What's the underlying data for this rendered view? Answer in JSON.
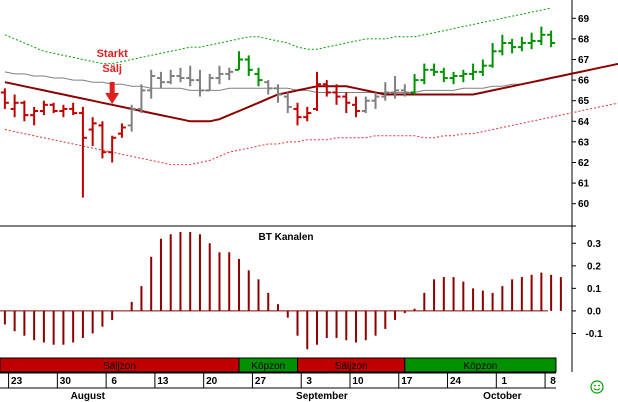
{
  "chart_data": [
    {
      "type": "line",
      "title": "",
      "y_ticks": [
        60,
        61,
        62,
        63,
        64,
        65,
        66,
        67,
        68,
        69
      ],
      "ylim": [
        59.5,
        69.5
      ],
      "annotation": {
        "line1": "Starkt",
        "line2": "Sälj",
        "at_bar": 11,
        "color": "#e02020"
      },
      "bar_colors": {
        "sell": "#c00000",
        "neutral": "#808080",
        "buy": "#009000"
      },
      "bars": [
        {
          "h": 65.6,
          "l": 64.6,
          "o": 65.4,
          "c": 64.9,
          "z": "sell"
        },
        {
          "h": 65.3,
          "l": 64.2,
          "o": 64.6,
          "c": 64.9,
          "z": "sell"
        },
        {
          "h": 65.0,
          "l": 64.0,
          "o": 64.9,
          "c": 64.3,
          "z": "sell"
        },
        {
          "h": 64.7,
          "l": 63.8,
          "o": 64.3,
          "c": 64.5,
          "z": "sell"
        },
        {
          "h": 65.0,
          "l": 64.3,
          "o": 64.5,
          "c": 64.8,
          "z": "sell"
        },
        {
          "h": 64.9,
          "l": 64.4,
          "o": 64.8,
          "c": 64.5,
          "z": "sell"
        },
        {
          "h": 64.8,
          "l": 64.2,
          "o": 64.5,
          "c": 64.6,
          "z": "sell"
        },
        {
          "h": 64.9,
          "l": 64.3,
          "o": 64.6,
          "c": 64.4,
          "z": "sell"
        },
        {
          "h": 64.7,
          "l": 60.3,
          "o": 64.4,
          "c": 63.2,
          "z": "sell"
        },
        {
          "h": 64.2,
          "l": 62.8,
          "o": 63.6,
          "c": 63.9,
          "z": "sell"
        },
        {
          "h": 64.0,
          "l": 62.2,
          "o": 63.8,
          "c": 62.5,
          "z": "sell"
        },
        {
          "h": 63.3,
          "l": 62.0,
          "o": 62.5,
          "c": 63.2,
          "z": "sell"
        },
        {
          "h": 63.9,
          "l": 63.2,
          "o": 63.4,
          "c": 63.7,
          "z": "sell"
        },
        {
          "h": 64.8,
          "l": 63.5,
          "o": 63.8,
          "c": 64.6,
          "z": "neutral"
        },
        {
          "h": 65.8,
          "l": 64.4,
          "o": 64.6,
          "c": 65.5,
          "z": "neutral"
        },
        {
          "h": 66.5,
          "l": 65.1,
          "o": 65.5,
          "c": 66.2,
          "z": "neutral"
        },
        {
          "h": 66.4,
          "l": 65.6,
          "o": 66.1,
          "c": 65.9,
          "z": "neutral"
        },
        {
          "h": 66.5,
          "l": 65.8,
          "o": 65.9,
          "c": 66.2,
          "z": "neutral"
        },
        {
          "h": 66.6,
          "l": 65.9,
          "o": 66.2,
          "c": 66.1,
          "z": "neutral"
        },
        {
          "h": 66.7,
          "l": 65.7,
          "o": 66.1,
          "c": 66.0,
          "z": "neutral"
        },
        {
          "h": 66.5,
          "l": 65.2,
          "o": 66.0,
          "c": 65.5,
          "z": "neutral"
        },
        {
          "h": 66.3,
          "l": 65.5,
          "o": 65.5,
          "c": 66.1,
          "z": "neutral"
        },
        {
          "h": 66.7,
          "l": 65.8,
          "o": 66.1,
          "c": 66.3,
          "z": "neutral"
        },
        {
          "h": 66.6,
          "l": 66.0,
          "o": 66.3,
          "c": 66.4,
          "z": "neutral"
        },
        {
          "h": 67.4,
          "l": 66.5,
          "o": 66.5,
          "c": 67.0,
          "z": "buy"
        },
        {
          "h": 67.2,
          "l": 66.2,
          "o": 67.0,
          "c": 66.5,
          "z": "buy"
        },
        {
          "h": 66.6,
          "l": 65.7,
          "o": 66.3,
          "c": 66.0,
          "z": "buy"
        },
        {
          "h": 66.0,
          "l": 65.3,
          "o": 65.9,
          "c": 65.6,
          "z": "neutral"
        },
        {
          "h": 65.8,
          "l": 64.9,
          "o": 65.6,
          "c": 65.3,
          "z": "neutral"
        },
        {
          "h": 65.4,
          "l": 64.4,
          "o": 65.2,
          "c": 64.7,
          "z": "neutral"
        },
        {
          "h": 64.9,
          "l": 63.8,
          "o": 64.6,
          "c": 64.2,
          "z": "sell"
        },
        {
          "h": 64.7,
          "l": 64.0,
          "o": 64.2,
          "c": 64.4,
          "z": "sell"
        },
        {
          "h": 66.4,
          "l": 64.5,
          "o": 64.6,
          "c": 65.8,
          "z": "sell"
        },
        {
          "h": 66.0,
          "l": 65.2,
          "o": 65.8,
          "c": 65.4,
          "z": "sell"
        },
        {
          "h": 65.8,
          "l": 64.8,
          "o": 65.4,
          "c": 65.2,
          "z": "sell"
        },
        {
          "h": 65.4,
          "l": 64.4,
          "o": 65.2,
          "c": 64.9,
          "z": "sell"
        },
        {
          "h": 65.2,
          "l": 64.2,
          "o": 64.8,
          "c": 64.5,
          "z": "sell"
        },
        {
          "h": 65.2,
          "l": 64.4,
          "o": 64.5,
          "c": 65.0,
          "z": "neutral"
        },
        {
          "h": 65.4,
          "l": 64.6,
          "o": 65.0,
          "c": 65.2,
          "z": "neutral"
        },
        {
          "h": 65.9,
          "l": 65.0,
          "o": 65.2,
          "c": 65.4,
          "z": "neutral"
        },
        {
          "h": 66.2,
          "l": 65.1,
          "o": 65.4,
          "c": 65.5,
          "z": "neutral"
        },
        {
          "h": 65.8,
          "l": 65.2,
          "o": 65.5,
          "c": 65.4,
          "z": "neutral"
        },
        {
          "h": 66.3,
          "l": 65.3,
          "o": 65.4,
          "c": 66.0,
          "z": "buy"
        },
        {
          "h": 66.8,
          "l": 65.8,
          "o": 66.0,
          "c": 66.5,
          "z": "buy"
        },
        {
          "h": 66.8,
          "l": 66.2,
          "o": 66.5,
          "c": 66.4,
          "z": "buy"
        },
        {
          "h": 66.6,
          "l": 65.9,
          "o": 66.4,
          "c": 66.1,
          "z": "buy"
        },
        {
          "h": 66.4,
          "l": 65.8,
          "o": 66.1,
          "c": 66.2,
          "z": "buy"
        },
        {
          "h": 66.5,
          "l": 65.9,
          "o": 66.2,
          "c": 66.3,
          "z": "buy"
        },
        {
          "h": 66.8,
          "l": 66.0,
          "o": 66.3,
          "c": 66.4,
          "z": "buy"
        },
        {
          "h": 67.0,
          "l": 66.2,
          "o": 66.4,
          "c": 66.7,
          "z": "buy"
        },
        {
          "h": 67.8,
          "l": 66.6,
          "o": 66.7,
          "c": 67.4,
          "z": "buy"
        },
        {
          "h": 68.2,
          "l": 67.2,
          "o": 67.4,
          "c": 67.8,
          "z": "buy"
        },
        {
          "h": 68.0,
          "l": 67.3,
          "o": 67.8,
          "c": 67.6,
          "z": "buy"
        },
        {
          "h": 68.1,
          "l": 67.4,
          "o": 67.6,
          "c": 67.8,
          "z": "buy"
        },
        {
          "h": 68.3,
          "l": 67.5,
          "o": 67.8,
          "c": 67.9,
          "z": "buy"
        },
        {
          "h": 68.6,
          "l": 67.7,
          "o": 67.9,
          "c": 68.2,
          "z": "buy"
        },
        {
          "h": 68.4,
          "l": 67.6,
          "o": 68.2,
          "c": 67.8,
          "z": "buy"
        }
      ],
      "lines": [
        {
          "name": "",
          "style": "dashed",
          "color": "#00a000",
          "width": 1,
          "values": [
            68.2,
            68.0,
            67.8,
            67.6,
            67.4,
            67.3,
            67.2,
            67.1,
            67.0,
            66.9,
            66.8,
            66.8,
            66.9,
            67.0,
            67.1,
            67.2,
            67.3,
            67.4,
            67.5,
            67.6,
            67.6,
            67.7,
            67.8,
            67.9,
            68.0,
            68.1,
            68.1,
            68.0,
            67.9,
            67.8,
            67.6,
            67.5,
            67.5,
            67.6,
            67.7,
            67.8,
            67.9,
            68.0,
            68.0,
            68.0,
            68.1,
            68.1,
            68.1,
            68.2,
            68.3,
            68.4,
            68.5,
            68.6,
            68.7,
            68.8,
            68.9,
            69.0,
            69.1,
            69.2,
            69.3,
            69.4,
            69.5
          ]
        },
        {
          "name": "",
          "style": "solid",
          "color": "#808080",
          "width": 1,
          "values": [
            66.4,
            66.3,
            66.3,
            66.2,
            66.2,
            66.1,
            66.1,
            66.0,
            66.0,
            65.9,
            65.9,
            65.8,
            65.8,
            65.7,
            65.7,
            65.6,
            65.6,
            65.6,
            65.6,
            65.5,
            65.5,
            65.5,
            65.5,
            65.6,
            65.6,
            65.6,
            65.6,
            65.6,
            65.6,
            65.6,
            65.5,
            65.5,
            65.4,
            65.4,
            65.4,
            65.4,
            65.4,
            65.4,
            65.4,
            65.4,
            65.4,
            65.4,
            65.4,
            65.5,
            65.5,
            65.5,
            65.5,
            65.6,
            65.6,
            65.6,
            65.7,
            65.7,
            65.8,
            65.8,
            65.9,
            66.0,
            66.1
          ]
        },
        {
          "name": "",
          "style": "solid",
          "color": "#8b0000",
          "width": 2,
          "values": [
            65.9,
            65.8,
            65.7,
            65.6,
            65.5,
            65.4,
            65.3,
            65.2,
            65.1,
            65.0,
            64.9,
            64.8,
            64.7,
            64.6,
            64.5,
            64.4,
            64.3,
            64.2,
            64.1,
            64.0,
            64.0,
            64.0,
            64.1,
            64.3,
            64.5,
            64.7,
            64.9,
            65.1,
            65.3,
            65.4,
            65.5,
            65.6,
            65.7,
            65.7,
            65.7,
            65.7,
            65.6,
            65.5,
            65.4,
            65.3,
            65.3,
            65.3,
            65.3,
            65.3,
            65.3,
            65.3,
            65.3,
            65.3,
            65.3,
            65.4,
            65.5,
            65.6,
            65.7,
            65.8,
            65.9,
            66.0,
            66.1,
            66.2,
            66.3,
            66.4,
            66.5,
            66.6,
            66.7,
            66.8,
            66.9
          ]
        },
        {
          "name": "",
          "style": "dashed",
          "color": "#e03030",
          "width": 1,
          "values": [
            63.6,
            63.5,
            63.4,
            63.3,
            63.2,
            63.1,
            63.0,
            62.9,
            62.8,
            62.7,
            62.6,
            62.5,
            62.4,
            62.3,
            62.2,
            62.1,
            62.0,
            61.9,
            61.9,
            61.9,
            62.0,
            62.1,
            62.3,
            62.5,
            62.6,
            62.7,
            62.8,
            62.9,
            62.9,
            63.0,
            63.0,
            63.1,
            63.1,
            63.1,
            63.2,
            63.2,
            63.2,
            63.2,
            63.3,
            63.3,
            63.3,
            63.3,
            63.3,
            63.2,
            63.2,
            63.3,
            63.3,
            63.4,
            63.4,
            63.5,
            63.6,
            63.7,
            63.8,
            63.9,
            64.0,
            64.1,
            64.2,
            64.3,
            64.4,
            64.5,
            64.6,
            64.7,
            64.8,
            64.9,
            65.0
          ]
        }
      ]
    },
    {
      "type": "bar",
      "title": "BT Kanalen",
      "y_ticks": [
        -0.1,
        0.0,
        0.1,
        0.2,
        0.3
      ],
      "y_tick_labels": [
        "-0.1",
        "0.0",
        "0.1",
        "0.2",
        "0.3"
      ],
      "ylim": [
        -0.2,
        0.35
      ],
      "color": "#8b0000",
      "values": [
        -0.06,
        -0.09,
        -0.11,
        -0.13,
        -0.14,
        -0.15,
        -0.15,
        -0.14,
        -0.12,
        -0.1,
        -0.07,
        -0.04,
        0.0,
        0.04,
        0.11,
        0.24,
        0.32,
        0.34,
        0.35,
        0.35,
        0.34,
        0.3,
        0.26,
        0.26,
        0.23,
        0.18,
        0.14,
        0.08,
        0.03,
        -0.03,
        -0.11,
        -0.17,
        -0.15,
        -0.12,
        -0.12,
        -0.13,
        -0.14,
        -0.13,
        -0.11,
        -0.08,
        -0.04,
        -0.01,
        0.01,
        0.08,
        0.14,
        0.15,
        0.15,
        0.13,
        0.1,
        0.09,
        0.08,
        0.11,
        0.14,
        0.15,
        0.16,
        0.17,
        0.16,
        0.15
      ]
    }
  ],
  "zones": [
    {
      "label": "Säljzon",
      "from": 0,
      "to": 24.5,
      "color": "#c00000"
    },
    {
      "label": "Köpzon",
      "from": 24.5,
      "to": 30.5,
      "color": "#009000"
    },
    {
      "label": "Säljzon",
      "from": 30.5,
      "to": 41.5,
      "color": "#c00000"
    },
    {
      "label": "Köpzon",
      "from": 41.5,
      "to": 57,
      "color": "#009000"
    }
  ],
  "x_ticks": [
    {
      "label": "23",
      "at": 1.2
    },
    {
      "label": "30",
      "at": 6.2
    },
    {
      "label": "6",
      "at": 11.2
    },
    {
      "label": "13",
      "at": 16.2
    },
    {
      "label": "20",
      "at": 21.2
    },
    {
      "label": "27",
      "at": 26.2
    },
    {
      "label": "3",
      "at": 31.2
    },
    {
      "label": "10",
      "at": 36.2
    },
    {
      "label": "17",
      "at": 41.2
    },
    {
      "label": "24",
      "at": 46.2
    },
    {
      "label": "1",
      "at": 51.2
    },
    {
      "label": "8",
      "at": 56.2
    }
  ],
  "months": [
    {
      "label": "August",
      "at": 8.5
    },
    {
      "label": "September",
      "at": 32.5
    },
    {
      "label": "October",
      "at": 51.0
    }
  ],
  "corner_icon": "smiley-icon"
}
